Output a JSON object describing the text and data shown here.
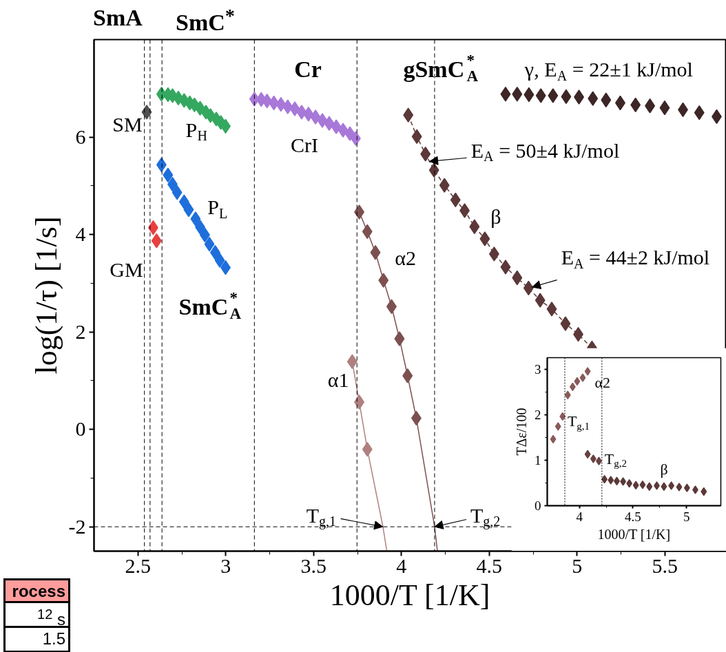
{
  "chart_data": [
    {
      "type": "scatter",
      "xlabel": "1000/T [1/K]",
      "ylabel": "log(1/τ) [1/s]",
      "xlim": [
        2.25,
        5.85
      ],
      "xticks": [
        2.5,
        3,
        3.5,
        4,
        4.5,
        5,
        5.5
      ],
      "ylim": [
        -2.5,
        8
      ],
      "yticks": [
        -2,
        0,
        2,
        4,
        6
      ],
      "grid": false,
      "marker": "diamond",
      "series": [
        {
          "name": "SM",
          "color": "#505050",
          "x": [
            2.55
          ],
          "values": [
            6.51
          ]
        },
        {
          "name": "GM",
          "color": "#e8403e",
          "x": [
            2.587,
            2.606
          ],
          "values": [
            4.14,
            3.87
          ]
        },
        {
          "name": "P$_{H}$",
          "color": "#35a860",
          "x": [
            2.634,
            2.671,
            2.697,
            2.73,
            2.763,
            2.795,
            2.822,
            2.854,
            2.887,
            2.913,
            2.946,
            2.972,
            2.999
          ],
          "values": [
            6.88,
            6.87,
            6.85,
            6.8,
            6.75,
            6.7,
            6.66,
            6.59,
            6.51,
            6.44,
            6.37,
            6.3,
            6.22
          ]
        },
        {
          "name": "P$_{L}$",
          "color": "#1e6fdc",
          "x": [
            2.634,
            2.671,
            2.697,
            2.723,
            2.763,
            2.789,
            2.828,
            2.854,
            2.881,
            2.907,
            2.94,
            2.966,
            2.999
          ],
          "values": [
            5.43,
            5.22,
            5.03,
            4.86,
            4.67,
            4.51,
            4.32,
            4.15,
            3.99,
            3.8,
            3.63,
            3.47,
            3.32
          ]
        },
        {
          "name": "CrI",
          "color": "#a878d8",
          "x": [
            3.163,
            3.202,
            3.235,
            3.274,
            3.314,
            3.353,
            3.393,
            3.432,
            3.471,
            3.511,
            3.55,
            3.589,
            3.629,
            3.668,
            3.707,
            3.74
          ],
          "values": [
            6.78,
            6.77,
            6.74,
            6.7,
            6.67,
            6.62,
            6.58,
            6.51,
            6.47,
            6.41,
            6.34,
            6.28,
            6.21,
            6.14,
            6.07,
            5.97
          ]
        },
        {
          "type": "line",
          "marker": "none",
          "color": "#b08080",
          "x": [
            3.72,
            3.76,
            3.806,
            3.895,
            3.917
          ],
          "values": [
            1.39,
            0.56,
            -0.41,
            -2,
            -2.5
          ]
        },
        {
          "name": "α1",
          "color": "#b08080",
          "x": [
            3.72,
            3.76,
            3.806
          ],
          "values": [
            1.39,
            0.56,
            -0.41
          ]
        },
        {
          "type": "line",
          "marker": "none",
          "color": "#7d5050",
          "x": [
            3.76,
            3.806,
            3.852,
            3.898,
            3.944,
            3.989,
            4.035,
            4.085,
            4.189,
            4.205
          ],
          "values": [
            4.46,
            4.06,
            3.63,
            3.06,
            2.52,
            1.86,
            1.1,
            0.23,
            -2,
            -2.5
          ]
        },
        {
          "name": "α2",
          "color": "#7d5050",
          "x": [
            3.76,
            3.806,
            3.852,
            3.898,
            3.944,
            3.989,
            4.035,
            4.085
          ],
          "values": [
            4.46,
            4.06,
            3.63,
            3.06,
            2.52,
            1.86,
            1.1,
            0.23
          ]
        },
        {
          "name": "β",
          "type": "line",
          "line_style": "dashed",
          "color": "#5c3838",
          "x": [
            4.039,
            4.088,
            4.137,
            4.186,
            4.245,
            4.308,
            4.36,
            4.416,
            4.475,
            4.528,
            4.593,
            4.659,
            4.724,
            4.79,
            4.856,
            4.934,
            5.007,
            5.085
          ],
          "values": [
            6.45,
            6.01,
            5.65,
            5.32,
            5.01,
            4.71,
            4.49,
            4.16,
            3.91,
            3.6,
            3.33,
            3.11,
            2.9,
            2.65,
            2.47,
            2.17,
            1.95,
            1.67
          ]
        },
        {
          "name": "γ, E$_{A}$ = 22±1 kJ/mol",
          "color": "#3d2626",
          "x": [
            4.593,
            4.659,
            4.726,
            4.794,
            4.863,
            4.938,
            5.011,
            5.09,
            5.165,
            5.246,
            5.333,
            5.415,
            5.499,
            5.603,
            5.696,
            5.795
          ],
          "values": [
            6.88,
            6.88,
            6.87,
            6.85,
            6.85,
            6.83,
            6.82,
            6.79,
            6.76,
            6.7,
            6.66,
            6.64,
            6.6,
            6.56,
            6.5,
            6.42
          ]
        }
      ],
      "ref_lines": [
        {
          "axis": "x",
          "value": 2.537,
          "color": "#000000",
          "line_style": "dashed"
        },
        {
          "axis": "x",
          "value": 2.569,
          "color": "#000000",
          "line_style": "dashed"
        },
        {
          "axis": "x",
          "value": 2.637,
          "color": "#000000",
          "line_style": "dashed"
        },
        {
          "axis": "x",
          "value": 3.163,
          "color": "#000000",
          "line_style": "dashed"
        },
        {
          "axis": "x",
          "value": 3.747,
          "color": "#000000",
          "line_style": "dashed"
        },
        {
          "axis": "x",
          "value": 4.189,
          "color": "#000000",
          "line_style": "dashed"
        },
        {
          "axis": "y",
          "value": -2,
          "color": "#000000",
          "line_style": "dashed"
        }
      ],
      "annotations": [
        "SmA",
        "SmC$^{*}$",
        "Cr",
        "gSmC$^{*}$$_{A}$",
        "SmC$^{*}$$_{A}$",
        {
          "text": "E$_{A}$ = 50±4 kJ/mol",
          "x": 4.16,
          "y": 5.5
        },
        {
          "text": "E$_{A}$ = 44±2 kJ/mol",
          "x": 4.744,
          "y": 2.92
        },
        {
          "text": "T$_{g,1}$",
          "x": 3.894,
          "y": -2
        },
        {
          "text": "T$_{g,2}$",
          "x": 4.189,
          "y": -2
        },
        "rocess",
        "$^{12}$ s",
        "1.5"
      ]
    },
    {
      "type": "scatter",
      "xlabel": "1000/T [1/K]",
      "ylabel": "TΔε/100",
      "xlim": [
        3.7,
        5.32
      ],
      "xticks": [
        4,
        4.5,
        5
      ],
      "ylim": [
        0,
        3.25
      ],
      "yticks": [
        0,
        1,
        2,
        3
      ],
      "grid": false,
      "marker": "diamond",
      "series": [
        {
          "name": "α2",
          "color": "#8a5a5a",
          "x": [
            3.755,
            3.801,
            3.843,
            3.891,
            3.937,
            3.979,
            4.031,
            4.077
          ],
          "values": [
            1.46,
            1.74,
            1.96,
            2.43,
            2.61,
            2.73,
            2.81,
            2.95
          ]
        },
        {
          "color": "#6a4040",
          "x": [
            4.077,
            4.13,
            4.182
          ],
          "values": [
            1.13,
            1.03,
            0.98
          ]
        },
        {
          "name": "β",
          "color": "#5c3838",
          "x": [
            4.234,
            4.293,
            4.349,
            4.408,
            4.466,
            4.527,
            4.59,
            4.653,
            4.722,
            4.789,
            4.858,
            4.931,
            5.004,
            5.082,
            5.161
          ],
          "values": [
            0.58,
            0.56,
            0.54,
            0.53,
            0.49,
            0.45,
            0.46,
            0.42,
            0.44,
            0.42,
            0.44,
            0.41,
            0.39,
            0.35,
            0.31
          ]
        }
      ],
      "ref_lines": [
        {
          "axis": "x",
          "value": 3.864,
          "color": "#000000",
          "line_style": "dotted",
          "label": "T$_{g,1}$"
        },
        {
          "axis": "x",
          "value": 4.21,
          "color": "#000000",
          "line_style": "dotted",
          "label": "T$_{g,2}$"
        }
      ]
    }
  ]
}
